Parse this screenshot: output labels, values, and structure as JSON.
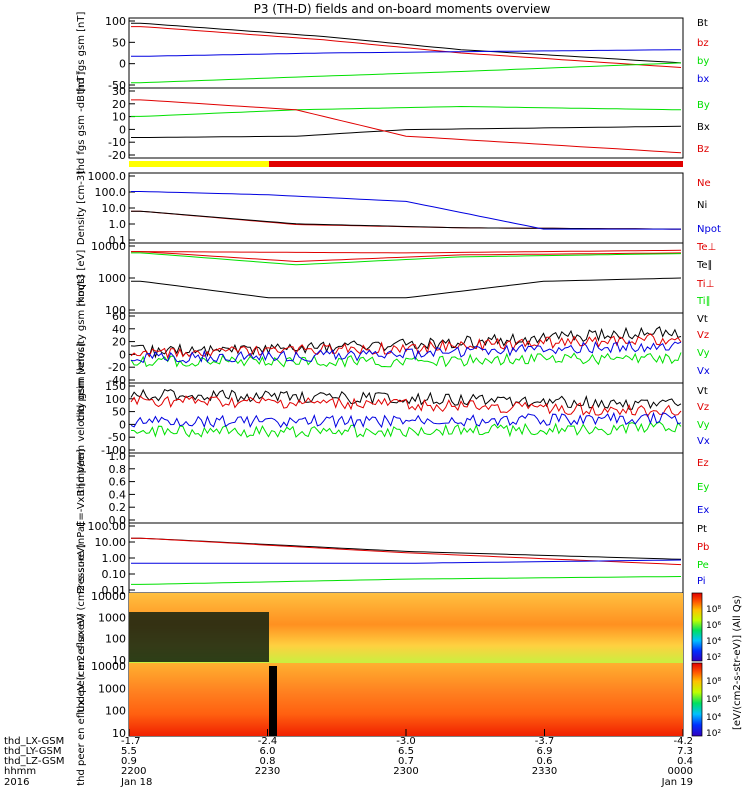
{
  "title": "P3 (TH-D) fields and on-board moments overview",
  "x_axis": {
    "row_labels": [
      "thd_LX-GSM",
      "thd_LY-GSM",
      "thd_LZ-GSM",
      "hhmm",
      "2016"
    ],
    "columns": [
      [
        "-1.7",
        "5.5",
        "0.9",
        "2200",
        "Jan 18"
      ],
      [
        "-2.4",
        "6.0",
        "0.8",
        "2230",
        ""
      ],
      [
        "-3.0",
        "6.5",
        "0.7",
        "2300",
        ""
      ],
      [
        "-3.7",
        "6.9",
        "0.6",
        "2330",
        ""
      ],
      [
        "-4.2",
        "7.3",
        "0.4",
        "0000",
        "Jan 19"
      ]
    ]
  },
  "colorbar_label": "[eV/(cm2-s-str-eV)] (All Qs)",
  "colors": {
    "black": "#000000",
    "red": "#e00000",
    "green": "#00e000",
    "blue": "#0000e0",
    "yellow": "#ffff00"
  },
  "chart_data": [
    {
      "type": "line",
      "id": "fgs_gsm",
      "ylabel": "thd fgs gsm [nT]",
      "yticks": [
        "100",
        "50",
        "0",
        "-50"
      ],
      "series": [
        {
          "name": "Bt",
          "color": "#000000"
        },
        {
          "name": "bz",
          "color": "#e00000"
        },
        {
          "name": "by",
          "color": "#00e000"
        },
        {
          "name": "bx",
          "color": "#0000e0"
        }
      ]
    },
    {
      "type": "line",
      "id": "fgs_dsl",
      "ylabel": "thd fgs gsm -dB [nT]",
      "yticks": [
        "30",
        "20",
        "10",
        "0",
        "-10",
        "-20"
      ],
      "series": [
        {
          "name": "By",
          "color": "#00e000"
        },
        {
          "name": "Bx",
          "color": "#000000"
        },
        {
          "name": "Bz",
          "color": "#e00000"
        }
      ]
    },
    {
      "type": "line",
      "id": "density",
      "ylabel": "Density [cm-3]",
      "log": true,
      "yticks": [
        "1000.0",
        "100.0",
        "10.0",
        "1.0",
        "0.1"
      ],
      "series": [
        {
          "name": "Ne",
          "color": "#e00000"
        },
        {
          "name": "Ni",
          "color": "#000000"
        },
        {
          "name": "Npot",
          "color": "#0000e0"
        }
      ]
    },
    {
      "type": "line",
      "id": "temperature",
      "ylabel": "moqt3 [eV]",
      "log": true,
      "yticks": [
        "10000",
        "1000",
        "100"
      ],
      "series": [
        {
          "name": "Te⊥",
          "color": "#e00000"
        },
        {
          "name": "Te∥",
          "color": "#000000"
        },
        {
          "name": "Ti⊥",
          "color": "#e00000"
        },
        {
          "name": "Ti∥",
          "color": "#00e000"
        }
      ]
    },
    {
      "type": "line",
      "id": "peim_velocity",
      "ylabel": "thd peim velocity gsm [km/s]",
      "yticks": [
        "60",
        "40",
        "20",
        "0",
        "-20",
        "-40"
      ],
      "series": [
        {
          "name": "Vt",
          "color": "#000000"
        },
        {
          "name": "Vz",
          "color": "#e00000"
        },
        {
          "name": "Vy",
          "color": "#00e000"
        },
        {
          "name": "Vx",
          "color": "#0000e0"
        }
      ]
    },
    {
      "type": "line",
      "id": "peem_velocity",
      "ylabel": "thd peem velocity gsm [km/s]",
      "yticks": [
        "150",
        "100",
        "50",
        "0",
        "-50",
        "-100"
      ],
      "series": [
        {
          "name": "Vt",
          "color": "#000000"
        },
        {
          "name": "Vz",
          "color": "#e00000"
        },
        {
          "name": "Vy",
          "color": "#00e000"
        },
        {
          "name": "Vx",
          "color": "#0000e0"
        }
      ]
    },
    {
      "type": "line",
      "id": "efield",
      "ylabel": "E=-VxB [mV/m]",
      "yticks": [
        "1.0",
        "0.8",
        "0.6",
        "0.4",
        "0.2",
        "0.0"
      ],
      "series": [
        {
          "name": "Ez",
          "color": "#e00000"
        },
        {
          "name": "Ey",
          "color": "#00e000"
        },
        {
          "name": "Ex",
          "color": "#0000e0"
        }
      ]
    },
    {
      "type": "line",
      "id": "pressure",
      "ylabel": "Pressure [nPa]",
      "log": true,
      "yticks": [
        "100.00",
        "10.00",
        "1.00",
        "0.10",
        "0.01"
      ],
      "series": [
        {
          "name": "Pt",
          "color": "#000000"
        },
        {
          "name": "Pb",
          "color": "#e00000"
        },
        {
          "name": "Pe",
          "color": "#00e000"
        },
        {
          "name": "Pi",
          "color": "#0000e0"
        }
      ]
    },
    {
      "type": "heatmap",
      "id": "peir_spec",
      "ylabel": "thd peir en eflux eV (cm2-s-sr-eV)",
      "log": true,
      "yticks": [
        "10000",
        "1000",
        "100",
        "10"
      ],
      "colorbar_ticks": [
        "10⁸",
        "10⁶",
        "10⁴",
        "10²"
      ]
    },
    {
      "type": "heatmap",
      "id": "peer_spec",
      "ylabel": "thd peer en eflux eV (cm2-s-sr-eV)",
      "log": true,
      "yticks": [
        "10000",
        "1000",
        "100",
        "10"
      ],
      "colorbar_ticks": [
        "10⁸",
        "10⁶",
        "10⁴",
        "10²"
      ]
    }
  ]
}
